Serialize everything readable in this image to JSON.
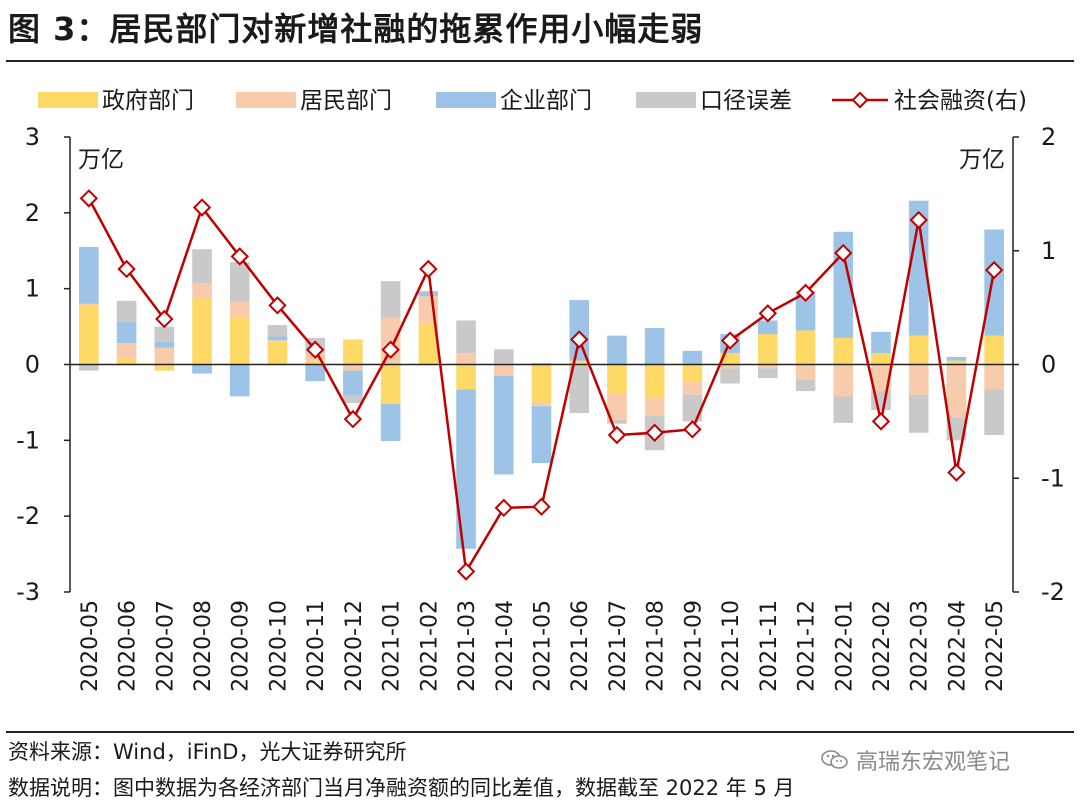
{
  "title": "图 3：居民部门对新增社融的拖累作用小幅走弱",
  "footer": {
    "source": "资料来源：Wind，iFinD，光大证券研究所",
    "note": "数据说明：图中数据为各经济部门当月净融资额的同比差值，数据截至 2022 年 5 月"
  },
  "watermark": {
    "text": "高瑞东宏观笔记",
    "icon": "wechat-icon"
  },
  "chart_data": {
    "type": "bar",
    "stacked": true,
    "categories": [
      "2020-05",
      "2020-06",
      "2020-07",
      "2020-08",
      "2020-09",
      "2020-10",
      "2020-11",
      "2020-12",
      "2021-01",
      "2021-02",
      "2021-03",
      "2021-04",
      "2021-05",
      "2021-06",
      "2021-07",
      "2021-08",
      "2021-09",
      "2021-10",
      "2021-11",
      "2021-12",
      "2022-01",
      "2022-02",
      "2022-03",
      "2022-04",
      "2022-05"
    ],
    "left_unit": "万亿",
    "right_unit": "万亿",
    "ylim": [
      -3,
      3
    ],
    "yticks": [
      -3,
      -2,
      -1,
      0,
      1,
      2,
      3
    ],
    "y2lim": [
      -2,
      2
    ],
    "y2ticks": [
      -2,
      -1,
      0,
      1,
      2
    ],
    "series": [
      {
        "name": "政府部门",
        "color": "#FFD966",
        "axis": "left",
        "values": [
          0.78,
          0.08,
          -0.08,
          0.87,
          0.63,
          0.3,
          0.05,
          0.33,
          -0.52,
          0.55,
          -0.33,
          0.02,
          -0.5,
          0.05,
          -0.38,
          -0.43,
          -0.22,
          0.15,
          0.4,
          0.45,
          0.35,
          0.15,
          0.38,
          0.05,
          0.38
        ]
      },
      {
        "name": "居民部门",
        "color": "#F8CBAD",
        "axis": "left",
        "values": [
          0.02,
          0.2,
          0.22,
          0.2,
          0.2,
          0.02,
          0.1,
          -0.08,
          0.62,
          0.35,
          0.15,
          -0.15,
          -0.05,
          -0.02,
          -0.35,
          -0.25,
          -0.18,
          -0.05,
          -0.05,
          -0.2,
          -0.42,
          -0.35,
          -0.4,
          -0.7,
          -0.33
        ]
      },
      {
        "name": "企业部门",
        "color": "#9DC3E6",
        "axis": "left",
        "values": [
          0.75,
          0.28,
          0.08,
          -0.12,
          -0.42,
          0.05,
          -0.22,
          -0.33,
          -0.49,
          0.05,
          -2.1,
          -1.3,
          -0.75,
          0.8,
          0.38,
          0.48,
          0.18,
          0.25,
          0.18,
          0.52,
          1.4,
          0.28,
          1.78,
          0.05,
          1.4
        ]
      },
      {
        "name": "口径误差",
        "color": "#C9C9C9",
        "axis": "left",
        "values": [
          -0.08,
          0.28,
          0.2,
          0.45,
          0.52,
          0.15,
          0.2,
          -0.1,
          0.48,
          0.02,
          0.43,
          0.18,
          0.02,
          -0.62,
          -0.05,
          -0.45,
          -0.35,
          -0.2,
          -0.13,
          -0.15,
          -0.35,
          -0.25,
          -0.5,
          -0.3,
          -0.6
        ]
      }
    ],
    "line": {
      "name": "社会融资(右)",
      "color": "#C00000",
      "axis": "right",
      "values": [
        1.46,
        0.84,
        0.4,
        1.38,
        0.95,
        0.52,
        0.13,
        -0.48,
        0.13,
        0.84,
        -1.82,
        -1.26,
        -1.25,
        0.22,
        -0.62,
        -0.6,
        -0.57,
        0.21,
        0.45,
        0.63,
        0.98,
        -0.5,
        1.27,
        -0.95,
        0.83
      ]
    }
  }
}
